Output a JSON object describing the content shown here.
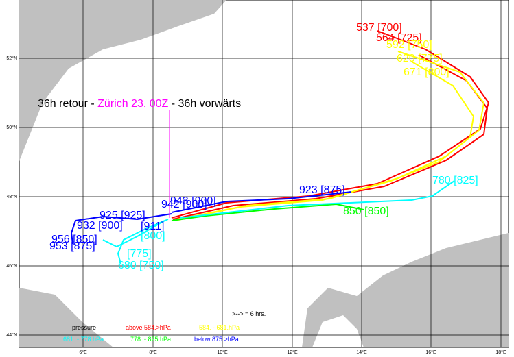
{
  "map": {
    "title": {
      "part1": "36h retour - ",
      "part2": "Zürich 23. 00Z",
      "part3": " - 36h vorwärts"
    },
    "lat_labels": [
      "52°N",
      "50°N",
      "48°N",
      "46°N",
      "44°N"
    ],
    "lon_labels": [
      "6°E",
      "8°E",
      "10°E",
      "12°E",
      "14°E",
      "16°E",
      "18°E"
    ],
    "trajectory_labels": [
      {
        "text": "537 [700]",
        "color": "#ff0000"
      },
      {
        "text": "564 [725]",
        "color": "#ff0000"
      },
      {
        "text": "592 [750]",
        "color": "#ffff00"
      },
      {
        "text": "620 [775]",
        "color": "#ffff00"
      },
      {
        "text": "671 [800]",
        "color": "#ffff00"
      },
      {
        "text": "780 [825]",
        "color": "#00ffff"
      },
      {
        "text": "923 [875]",
        "color": "#0000ff"
      },
      {
        "text": "850 [850]",
        "color": "#00ff00"
      },
      {
        "text": "942 [900]",
        "color": "#0000ff"
      },
      {
        "text": "943 [900]",
        "color": "#0000ff"
      },
      {
        "text": "925 [925]",
        "color": "#0000ff"
      },
      {
        "text": "932 [900]",
        "color": "#0000ff"
      },
      {
        "text": "[911]",
        "color": "#0000ff"
      },
      {
        "text": "956 [850]",
        "color": "#0000ff"
      },
      {
        "text": "953 [875]",
        "color": "#0000ff"
      },
      {
        "text": "[800]",
        "color": "#00ffff"
      },
      {
        "text": "[775]",
        "color": "#00ffff"
      },
      {
        "text": "680 [750]",
        "color": "#00ffff"
      }
    ],
    "arrow_note": ">--> = 6 hrs.",
    "legend": {
      "pressure": "pressure",
      "above": "above  584.>hPa",
      "range1": "584. -  681.hPa",
      "range2": "681. - 778.hPa",
      "range3": "778. - 875.hPa",
      "below": "below  875.>hPa"
    }
  }
}
